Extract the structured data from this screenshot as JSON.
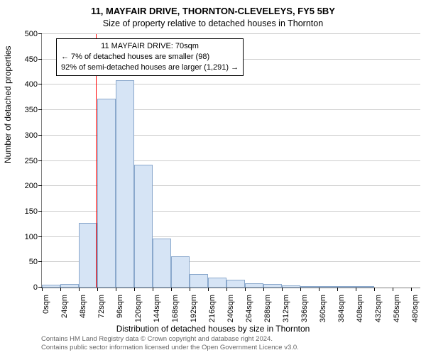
{
  "title_main": "11, MAYFAIR DRIVE, THORNTON-CLEVELEYS, FY5 5BY",
  "title_sub": "Size of property relative to detached houses in Thornton",
  "ylabel": "Number of detached properties",
  "xlabel": "Distribution of detached houses by size in Thornton",
  "attribution_line1": "Contains HM Land Registry data © Crown copyright and database right 2024.",
  "attribution_line2": "Contains public sector information licensed under the Open Government Licence v3.0.",
  "chart": {
    "type": "histogram",
    "background_color": "#ffffff",
    "grid_color": "#cccccc",
    "axis_color": "#808080",
    "bar_fill": "#d6e4f5",
    "bar_stroke": "#8aa8cc",
    "bar_stroke_width": 1,
    "ref_line_color": "#ff0000",
    "ref_line_x": 70,
    "xlim": [
      0,
      492
    ],
    "ylim": [
      0,
      500
    ],
    "ytick_step": 50,
    "xtick_step": 24,
    "xtick_suffix": "sqm",
    "bin_width": 24,
    "values": [
      5,
      7,
      128,
      372,
      409,
      242,
      96,
      62,
      27,
      20,
      15,
      8,
      7,
      4,
      2,
      2,
      1,
      1,
      0,
      0,
      0
    ],
    "label_fontsize": 12,
    "tick_fontsize": 11
  },
  "annotation": {
    "line1": "11 MAYFAIR DRIVE: 70sqm",
    "line2": "← 7% of detached houses are smaller (98)",
    "line3": "92% of semi-detached houses are larger (1,291) →"
  }
}
